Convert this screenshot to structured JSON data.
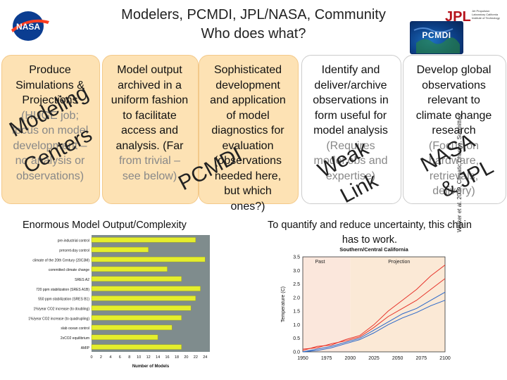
{
  "header": {
    "title_line1": "Modelers, PCMDI, JPL/NASA, Community",
    "title_line2": "Who does what?",
    "nasa_logo_text": "NASA",
    "jpl_logo_text": "JPL",
    "jpl_subtext": "Jet Propulsion Laboratory California Institute of Technology",
    "pcmdi_logo_text": "PCMDI"
  },
  "columns": [
    {
      "lines": [
        "Produce",
        "Simulations &",
        "Projections",
        "(HUGE job;",
        "focus on model",
        "development –",
        "no analysis or",
        "observations)"
      ]
    },
    {
      "lines": [
        "Model output",
        "archived in a",
        "uniform fashion",
        "to facilitate",
        "access and",
        "analysis. (Far",
        "from trivial –",
        "see below)"
      ]
    },
    {
      "lines": [
        "Sophisticated",
        "development",
        "and application",
        "of model",
        "diagnostics for",
        "evaluation",
        "(observations",
        "needed here,",
        "but which",
        "ones?)"
      ]
    },
    {
      "lines": [
        "Identify and",
        "deliver/archive",
        "observations in",
        "form useful for",
        "model analysis",
        "(Requires",
        "model obs and",
        "expertise)"
      ]
    },
    {
      "lines": [
        "Develop global",
        "observations",
        "relevant to",
        "climate change",
        "research",
        "(Focus on",
        "hardware,",
        "retrievals,",
        "delivery)"
      ]
    }
  ],
  "overlays": {
    "modeling_1": "Modeling",
    "modeling_2": "Centers",
    "pcmdi": "PCMDI",
    "weak": "Weak",
    "link": "Link",
    "nasa": "NASA",
    "jpl": "& JPL"
  },
  "captions": {
    "left": "Enormous Model Output/Complexity",
    "right_line1": "To quantify and reduce uncertainty, this chain",
    "right_line2": "has to work.",
    "citation": "Walker et al. 2009, Climatic Change, Submitted"
  },
  "chart_data": [
    {
      "type": "bar",
      "orientation": "horizontal",
      "categories": [
        "pre-industrial control",
        "present-day control",
        "climate of the 20th Century (20C3M)",
        "committed climate change",
        "SRES A2",
        "720 ppm stabilization (SRES A1B)",
        "550 ppm stabilization (SRES B1)",
        "1%/year CO2 increase (to doubling)",
        "1%/year CO2 increase (to quadrupling)",
        "slab ocean control",
        "2xCO2 equilibrium",
        "AMIP"
      ],
      "values": [
        22,
        12,
        24,
        16,
        19,
        23,
        22,
        21,
        19,
        17,
        14,
        19
      ],
      "xlabel": "Number of Models",
      "xticks": [
        0,
        2,
        4,
        6,
        8,
        10,
        12,
        14,
        16,
        18,
        20,
        22,
        24
      ],
      "xlim": [
        0,
        25
      ]
    },
    {
      "type": "line",
      "title": "Southern/Central California",
      "ylabel": "Temperature (C)",
      "x_ticks": [
        1950,
        1975,
        2000,
        2025,
        2050,
        2075,
        2100
      ],
      "y_ticks": [
        0.0,
        0.5,
        1.0,
        1.5,
        2.0,
        2.5,
        3.0,
        3.5
      ],
      "xlim": [
        1950,
        2100
      ],
      "ylim": [
        0,
        3.5
      ],
      "annotations": [
        "Past",
        "Projection"
      ],
      "colors": {
        "past_bg": "#fbe7dc",
        "projection_bg": "#fbe9d6",
        "lines": [
          "#e6332a",
          "#2a67c9",
          "#e6332a",
          "#2a67c9"
        ]
      },
      "series": [
        {
          "x": [
            1950,
            1965,
            1980,
            1995,
            2010,
            2025,
            2040,
            2055,
            2070,
            2085,
            2100
          ],
          "values": [
            0.1,
            0.15,
            0.3,
            0.4,
            0.55,
            0.9,
            1.3,
            1.6,
            1.9,
            2.3,
            2.7
          ]
        },
        {
          "x": [
            1950,
            1965,
            1980,
            1995,
            2010,
            2025,
            2040,
            2055,
            2070,
            2085,
            2100
          ],
          "values": [
            0.0,
            0.1,
            0.2,
            0.35,
            0.5,
            0.8,
            1.1,
            1.4,
            1.6,
            1.9,
            2.2
          ]
        },
        {
          "x": [
            1950,
            1965,
            1980,
            1995,
            2010,
            2025,
            2040,
            2055,
            2070,
            2085,
            2100
          ],
          "values": [
            0.05,
            0.2,
            0.25,
            0.45,
            0.6,
            1.0,
            1.5,
            1.9,
            2.3,
            2.8,
            3.2
          ]
        },
        {
          "x": [
            1950,
            1965,
            1980,
            1995,
            2010,
            2025,
            2040,
            2055,
            2070,
            2085,
            2100
          ],
          "values": [
            0.0,
            0.05,
            0.15,
            0.3,
            0.45,
            0.7,
            1.0,
            1.25,
            1.45,
            1.7,
            1.9
          ]
        }
      ]
    }
  ]
}
